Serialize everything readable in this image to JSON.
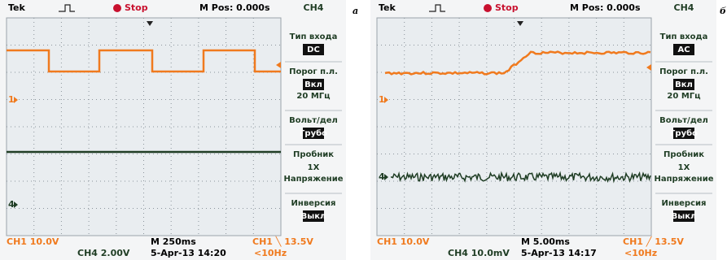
{
  "panels": [
    {
      "label": "а",
      "header": {
        "brand": "Tek",
        "state": "Stop",
        "position": "M Pos: 0.000s",
        "channel": "CH4"
      },
      "markers": [
        "1",
        "4"
      ],
      "menu": [
        {
          "title": "Тип входа",
          "items": [
            "DC"
          ],
          "boxed": true
        },
        {
          "title": "Порог п.л.",
          "items": [
            "Вкл",
            "20 МГц"
          ],
          "boxed": true
        },
        {
          "title": "Вольт/дел",
          "items": [
            "Грубо"
          ],
          "boxed": true
        },
        {
          "title": "Пробник",
          "items": [
            "1X",
            "Напряжение"
          ],
          "boxed": false
        },
        {
          "title": "Инверсия",
          "items": [
            "Выкл"
          ],
          "boxed": true
        }
      ],
      "footer": {
        "ch1_scale": "CH1  10.0V",
        "timebase": "M 250ms",
        "trigger": "CH1 ╲ 13.5V",
        "ch4_scale": "CH4  2.00V",
        "date": "5-Apr-13 14:20",
        "freq": "<10Hz"
      }
    },
    {
      "label": "б",
      "header": {
        "brand": "Tek",
        "state": "Stop",
        "position": "M Pos: 0.000s",
        "channel": "CH4"
      },
      "markers": [
        "1",
        "4"
      ],
      "menu": [
        {
          "title": "Тип входа",
          "items": [
            "AC"
          ],
          "boxed": true
        },
        {
          "title": "Порог п.л.",
          "items": [
            "Вкл",
            "20 МГц"
          ],
          "boxed": true
        },
        {
          "title": "Вольт/дел",
          "items": [
            "Грубо"
          ],
          "boxed": true
        },
        {
          "title": "Пробник",
          "items": [
            "1X",
            "Напряжение"
          ],
          "boxed": false
        },
        {
          "title": "Инверсия",
          "items": [
            "Выкл"
          ],
          "boxed": true
        }
      ],
      "footer": {
        "ch1_scale": "CH1  10.0V",
        "timebase": "M 5.00ms",
        "trigger": "CH1 ╱ 13.5V",
        "ch4_scale": "CH4  10.0mV",
        "date": "5-Apr-13 14:17",
        "freq": "<10Hz"
      }
    }
  ]
}
